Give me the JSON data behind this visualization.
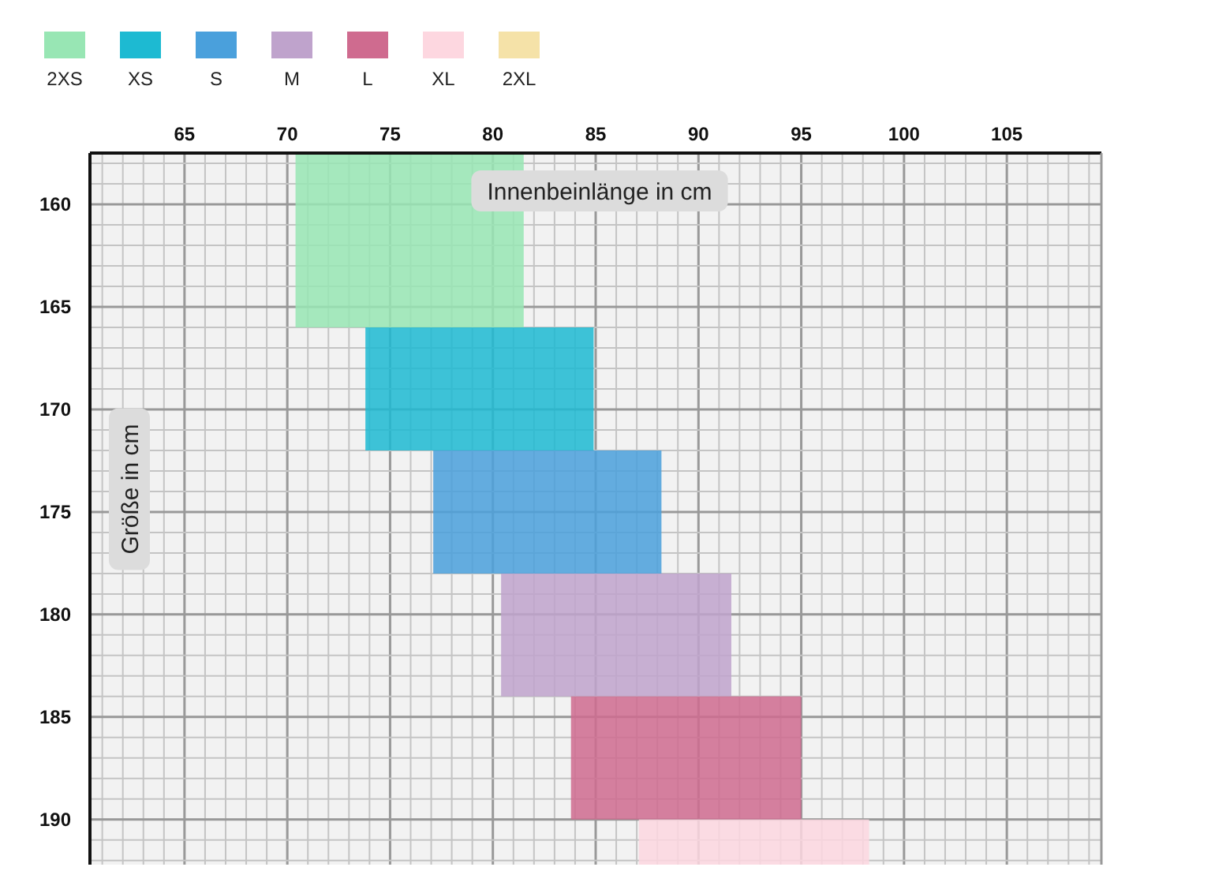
{
  "chart_data": {
    "type": "line",
    "xlabel": "Innenbeinlänge in cm",
    "ylabel": "Größe in cm",
    "xlim": [
      60.4,
      109.6
    ],
    "xticks": [
      65,
      70,
      75,
      80,
      85,
      90,
      95,
      100,
      105
    ],
    "ylim": [
      192.2,
      157.5
    ],
    "yticks": [
      160,
      165,
      170,
      175,
      180,
      185,
      190
    ],
    "grid": true,
    "legend": "top left",
    "series": [
      {
        "name": "2XS",
        "color": "#98e6b4",
        "x": [
          70.4,
          81.5
        ],
        "values": [
          null,
          null
        ],
        "upper": [
          157.5,
          157.5
        ],
        "lower": [
          166,
          166
        ]
      },
      {
        "name": "XS",
        "color": "#1dbad2",
        "x": [
          73.8,
          84.9
        ],
        "values": [
          null,
          null
        ],
        "upper": [
          166,
          166
        ],
        "lower": [
          172,
          172
        ]
      },
      {
        "name": "S",
        "color": "#4aa0dc",
        "x": [
          77.1,
          88.2
        ],
        "values": [
          null,
          null
        ],
        "upper": [
          172,
          172
        ],
        "lower": [
          178,
          178
        ]
      },
      {
        "name": "M",
        "color": "#bfa3cc",
        "x": [
          80.4,
          91.6
        ],
        "values": [
          null,
          null
        ],
        "upper": [
          178,
          178
        ],
        "lower": [
          184,
          184
        ]
      },
      {
        "name": "L",
        "color": "#cf6b8f",
        "x": [
          83.8,
          95.0
        ],
        "values": [
          null,
          null
        ],
        "upper": [
          184,
          184
        ],
        "lower": [
          190,
          190
        ]
      },
      {
        "name": "XL",
        "color": "#fdd7e0",
        "x": [
          87.1,
          98.3
        ],
        "values": [
          null,
          null
        ],
        "upper": [
          190,
          190
        ],
        "lower": [
          192.2,
          192.2
        ]
      },
      {
        "name": "2XL",
        "color": "#f5e2a8"
      }
    ]
  }
}
